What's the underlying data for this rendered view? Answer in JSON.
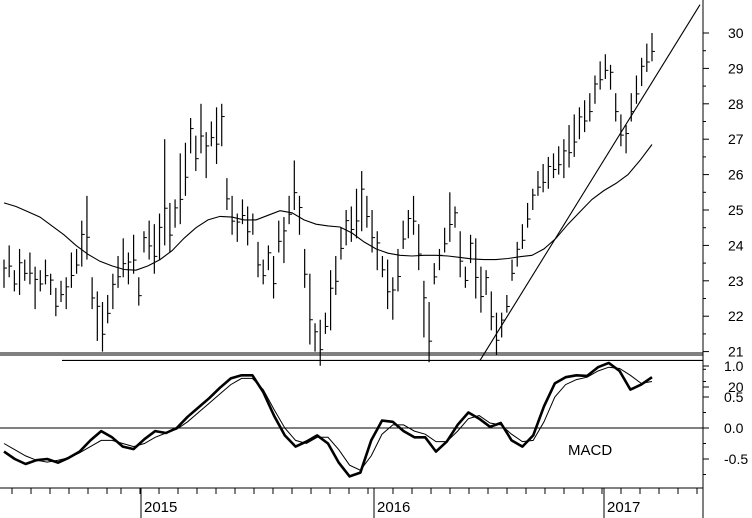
{
  "chart_data": [
    {
      "type": "line",
      "subtype": "ohlc-bar",
      "title": "",
      "y_axis": {
        "side": "right",
        "ylim": [
          19.5,
          30.5
        ],
        "ticks": [
          30,
          29,
          28,
          27,
          26,
          25,
          24,
          23,
          22,
          21,
          20
        ]
      },
      "price_bars": [
        [
          22.8,
          23.6
        ],
        [
          23.1,
          24.0
        ],
        [
          22.7,
          23.3
        ],
        [
          22.6,
          23.9
        ],
        [
          23.0,
          23.6
        ],
        [
          22.9,
          23.8
        ],
        [
          22.2,
          23.4
        ],
        [
          22.7,
          23.3
        ],
        [
          22.9,
          23.6
        ],
        [
          22.6,
          23.2
        ],
        [
          22.0,
          22.8
        ],
        [
          22.4,
          23.0
        ],
        [
          22.2,
          23.1
        ],
        [
          22.8,
          23.8
        ],
        [
          23.2,
          23.9
        ],
        [
          23.4,
          24.7
        ],
        [
          23.6,
          25.4
        ],
        [
          22.2,
          23.1
        ],
        [
          21.3,
          22.7
        ],
        [
          21.0,
          22.4
        ],
        [
          21.8,
          22.6
        ],
        [
          22.2,
          23.2
        ],
        [
          22.8,
          23.7
        ],
        [
          23.1,
          24.2
        ],
        [
          22.9,
          23.8
        ],
        [
          23.2,
          24.3
        ],
        [
          22.3,
          23.1
        ],
        [
          23.8,
          24.4
        ],
        [
          23.6,
          24.7
        ],
        [
          23.2,
          24.6
        ],
        [
          23.6,
          24.9
        ],
        [
          24.0,
          27.0
        ],
        [
          23.8,
          25.2
        ],
        [
          24.5,
          25.3
        ],
        [
          24.6,
          26.6
        ],
        [
          25.4,
          26.9
        ],
        [
          26.6,
          27.6
        ],
        [
          26.1,
          27.1
        ],
        [
          26.6,
          28.0
        ],
        [
          25.9,
          27.2
        ],
        [
          26.8,
          27.5
        ],
        [
          26.3,
          27.9
        ],
        [
          26.8,
          28.0
        ],
        [
          25.0,
          25.9
        ],
        [
          24.3,
          25.4
        ],
        [
          24.1,
          24.9
        ],
        [
          24.6,
          25.3
        ],
        [
          24.0,
          25.1
        ],
        [
          24.3,
          24.9
        ],
        [
          23.1,
          24.1
        ],
        [
          22.9,
          23.6
        ],
        [
          23.3,
          24.0
        ],
        [
          22.5,
          23.7
        ],
        [
          23.8,
          24.7
        ],
        [
          23.5,
          24.8
        ],
        [
          24.6,
          25.4
        ],
        [
          25.0,
          26.4
        ],
        [
          24.3,
          25.4
        ],
        [
          22.8,
          23.9
        ],
        [
          21.2,
          23.2
        ],
        [
          21.0,
          21.8
        ],
        [
          20.6,
          21.9
        ],
        [
          21.5,
          22.1
        ],
        [
          21.6,
          23.3
        ],
        [
          22.6,
          23.7
        ],
        [
          23.6,
          24.5
        ],
        [
          24.0,
          25.0
        ],
        [
          24.1,
          25.1
        ],
        [
          24.2,
          25.6
        ],
        [
          24.4,
          26.1
        ],
        [
          24.5,
          25.4
        ],
        [
          23.8,
          25.0
        ],
        [
          23.3,
          24.4
        ],
        [
          23.1,
          23.7
        ],
        [
          22.2,
          23.6
        ],
        [
          21.9,
          23.1
        ],
        [
          22.7,
          23.9
        ],
        [
          23.9,
          24.7
        ],
        [
          24.2,
          25.0
        ],
        [
          24.3,
          25.4
        ],
        [
          23.3,
          24.6
        ],
        [
          21.4,
          23.0
        ],
        [
          20.7,
          22.4
        ],
        [
          22.9,
          23.5
        ],
        [
          23.3,
          23.9
        ],
        [
          23.8,
          24.5
        ],
        [
          24.1,
          25.5
        ],
        [
          24.5,
          25.1
        ],
        [
          23.1,
          24.4
        ],
        [
          22.8,
          23.4
        ],
        [
          23.5,
          24.3
        ],
        [
          22.5,
          24.2
        ],
        [
          22.1,
          23.4
        ],
        [
          22.6,
          23.3
        ],
        [
          21.6,
          22.7
        ],
        [
          20.9,
          22.1
        ],
        [
          21.4,
          22.1
        ],
        [
          22.1,
          22.6
        ],
        [
          23.0,
          23.6
        ],
        [
          23.4,
          24.1
        ],
        [
          23.9,
          24.6
        ],
        [
          24.5,
          25.2
        ],
        [
          25.0,
          25.6
        ],
        [
          25.4,
          26.1
        ],
        [
          25.5,
          26.3
        ],
        [
          25.6,
          26.5
        ],
        [
          25.9,
          26.6
        ],
        [
          26.0,
          26.8
        ],
        [
          25.9,
          27.0
        ],
        [
          26.2,
          27.4
        ],
        [
          26.5,
          27.7
        ],
        [
          27.0,
          27.9
        ],
        [
          27.2,
          28.1
        ],
        [
          27.5,
          28.3
        ],
        [
          28.0,
          28.8
        ],
        [
          28.4,
          29.2
        ],
        [
          28.7,
          29.4
        ],
        [
          28.4,
          29.1
        ],
        [
          27.5,
          28.3
        ],
        [
          26.8,
          27.7
        ],
        [
          26.6,
          27.4
        ],
        [
          27.5,
          28.3
        ],
        [
          28.0,
          28.8
        ],
        [
          28.5,
          29.3
        ],
        [
          28.9,
          29.7
        ],
        [
          29.2,
          30.0
        ]
      ],
      "moving_average": [
        25.2,
        25.1,
        24.95,
        24.8,
        24.55,
        24.3,
        24.0,
        23.75,
        23.55,
        23.42,
        23.32,
        23.3,
        23.42,
        23.6,
        23.85,
        24.2,
        24.5,
        24.72,
        24.82,
        24.8,
        24.72,
        24.72,
        24.85,
        24.98,
        24.92,
        24.72,
        24.6,
        24.55,
        24.52,
        24.35,
        24.1,
        23.9,
        23.78,
        23.72,
        23.7,
        23.72,
        23.72,
        23.7,
        23.66,
        23.62,
        23.6,
        23.6,
        23.63,
        23.68,
        23.72,
        23.9,
        24.2,
        24.6,
        24.95,
        25.3,
        25.55,
        25.75,
        26.0,
        26.4,
        26.85
      ],
      "horizontal_support": 20.75,
      "trendline": {
        "from": 20.75,
        "to": 30.8
      },
      "x_axis": {
        "labels": [
          "2015",
          "2016",
          "2017"
        ]
      }
    },
    {
      "type": "line",
      "title": "MACD",
      "y_axis": {
        "side": "right",
        "ylim": [
          -0.85,
          1.25
        ],
        "ticks": [
          "1.0",
          "0.5",
          "0.0",
          "-0.5"
        ]
      },
      "series": [
        {
          "values": [
            -0.38,
            -0.5,
            -0.58,
            -0.52,
            -0.5,
            -0.56,
            -0.48,
            -0.38,
            -0.2,
            -0.05,
            -0.15,
            -0.3,
            -0.34,
            -0.18,
            -0.05,
            -0.08,
            0.0,
            0.18,
            0.33,
            0.48,
            0.65,
            0.8,
            0.85,
            0.85,
            0.58,
            0.2,
            -0.12,
            -0.3,
            -0.22,
            -0.12,
            -0.25,
            -0.56,
            -0.78,
            -0.72,
            -0.2,
            0.12,
            0.1,
            -0.05,
            -0.15,
            -0.15,
            -0.38,
            -0.22,
            0.05,
            0.25,
            0.15,
            0.02,
            0.08,
            -0.2,
            -0.3,
            -0.12,
            0.35,
            0.72,
            0.82,
            0.85,
            0.84,
            0.98,
            1.05,
            0.92,
            0.62,
            0.7,
            0.82
          ]
        },
        {
          "values": [
            -0.25,
            -0.35,
            -0.45,
            -0.52,
            -0.55,
            -0.52,
            -0.48,
            -0.4,
            -0.3,
            -0.2,
            -0.2,
            -0.25,
            -0.3,
            -0.25,
            -0.15,
            -0.08,
            -0.02,
            0.1,
            0.25,
            0.4,
            0.55,
            0.7,
            0.8,
            0.8,
            0.62,
            0.3,
            0.0,
            -0.2,
            -0.25,
            -0.15,
            -0.15,
            -0.35,
            -0.6,
            -0.68,
            -0.45,
            -0.1,
            0.05,
            0.05,
            -0.05,
            -0.1,
            -0.22,
            -0.22,
            -0.05,
            0.15,
            0.2,
            0.08,
            0.05,
            -0.1,
            -0.22,
            -0.2,
            0.1,
            0.5,
            0.7,
            0.78,
            0.82,
            0.92,
            0.98,
            0.96,
            0.85,
            0.72,
            0.75
          ]
        }
      ],
      "zero_line": 0.0
    }
  ]
}
